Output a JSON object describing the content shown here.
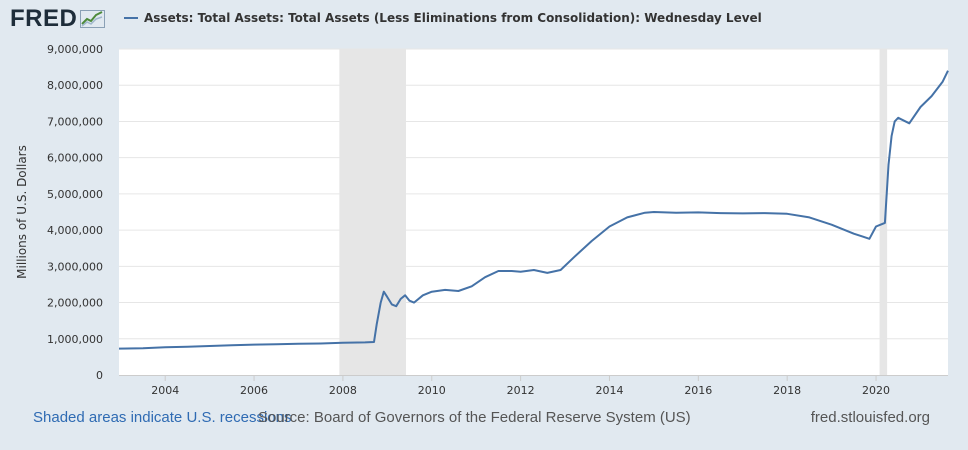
{
  "logo": {
    "text": "FRED",
    "icon": "chart-sparkline-icon"
  },
  "legend": {
    "label": "Assets: Total Assets: Total Assets (Less Eliminations from Consolidation): Wednesday Level",
    "color": "#4572a7"
  },
  "footer": {
    "recession_note": "Shaded areas indicate U.S. recessions",
    "recession_color": "#2f6bb3",
    "source": "Source: Board of Governors of the Federal Reserve System (US)",
    "url": "fred.stlouisfed.org"
  },
  "chart_data": {
    "type": "line",
    "ylabel": "Millions of U.S. Dollars",
    "xlabel": "",
    "ylim": [
      0,
      9000000
    ],
    "xlim": [
      2002.96,
      2021.62
    ],
    "yticks": [
      0,
      1000000,
      2000000,
      3000000,
      4000000,
      5000000,
      6000000,
      7000000,
      8000000,
      9000000
    ],
    "ytick_labels": [
      "0",
      "1,000,000",
      "2,000,000",
      "3,000,000",
      "4,000,000",
      "5,000,000",
      "6,000,000",
      "7,000,000",
      "8,000,000",
      "9,000,000"
    ],
    "xticks": [
      2004,
      2006,
      2008,
      2010,
      2012,
      2014,
      2016,
      2018,
      2020
    ],
    "xtick_labels": [
      "2004",
      "2006",
      "2008",
      "2010",
      "2012",
      "2014",
      "2016",
      "2018",
      "2020"
    ],
    "grid": true,
    "plot_bg": "#ffffff",
    "recession_color": "#e6e6e6",
    "recessions": [
      [
        2007.92,
        2009.42
      ],
      [
        2020.08,
        2020.25
      ]
    ],
    "series": [
      {
        "color": "#4572a7",
        "x": [
          2002.96,
          2003.5,
          2004.0,
          2004.5,
          2005.0,
          2005.5,
          2006.0,
          2006.5,
          2007.0,
          2007.5,
          2008.0,
          2008.5,
          2008.7,
          2008.76,
          2008.85,
          2008.92,
          2009.0,
          2009.1,
          2009.2,
          2009.3,
          2009.4,
          2009.5,
          2009.6,
          2009.8,
          2010.0,
          2010.3,
          2010.6,
          2010.9,
          2011.2,
          2011.5,
          2011.8,
          2012.0,
          2012.3,
          2012.6,
          2012.9,
          2013.2,
          2013.6,
          2014.0,
          2014.4,
          2014.8,
          2015.0,
          2015.5,
          2016.0,
          2016.5,
          2017.0,
          2017.5,
          2018.0,
          2018.5,
          2019.0,
          2019.5,
          2019.7,
          2019.85,
          2020.0,
          2020.1,
          2020.2,
          2020.28,
          2020.35,
          2020.42,
          2020.5,
          2020.75,
          2021.0,
          2021.25,
          2021.5,
          2021.62
        ],
        "y": [
          730000,
          740000,
          765000,
          780000,
          800000,
          820000,
          840000,
          850000,
          860000,
          870000,
          890000,
          900000,
          910000,
          1400000,
          2000000,
          2300000,
          2150000,
          1950000,
          1900000,
          2100000,
          2200000,
          2050000,
          2000000,
          2200000,
          2300000,
          2350000,
          2320000,
          2450000,
          2700000,
          2870000,
          2870000,
          2850000,
          2900000,
          2820000,
          2900000,
          3250000,
          3700000,
          4100000,
          4350000,
          4480000,
          4500000,
          4480000,
          4490000,
          4470000,
          4460000,
          4470000,
          4450000,
          4350000,
          4150000,
          3900000,
          3820000,
          3760000,
          4100000,
          4150000,
          4200000,
          5800000,
          6600000,
          7000000,
          7100000,
          6950000,
          7400000,
          7700000,
          8100000,
          8400000
        ]
      }
    ]
  }
}
